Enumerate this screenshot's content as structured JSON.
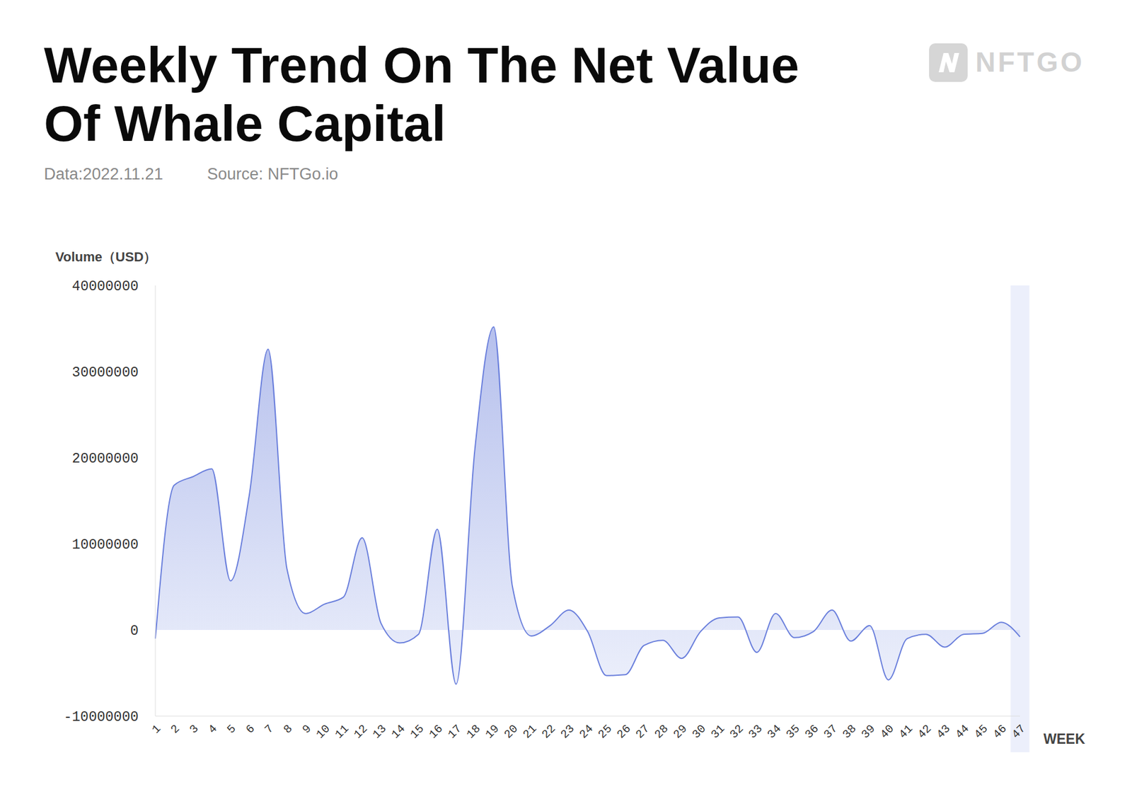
{
  "chart_data": {
    "type": "area",
    "title": "Weekly Trend On The Net Value Of Whale Capital",
    "subtitle": "Data:2022.11.21",
    "source": "Source: NFTGo.io",
    "logo": "NFTGO",
    "y_label": "Volume（USD）",
    "x_label": "WEEK",
    "categories": [
      "1",
      "2",
      "3",
      "4",
      "5",
      "6",
      "7",
      "8",
      "9",
      "10",
      "11",
      "12",
      "13",
      "14",
      "15",
      "16",
      "17",
      "18",
      "19",
      "20",
      "21",
      "22",
      "23",
      "24",
      "25",
      "26",
      "27",
      "28",
      "29",
      "30",
      "31",
      "32",
      "33",
      "34",
      "35",
      "36",
      "37",
      "38",
      "39",
      "40",
      "41",
      "42",
      "43",
      "44",
      "45",
      "46",
      "47"
    ],
    "values": [
      -1000000,
      16800000,
      17800000,
      18700000,
      5700000,
      15700000,
      32600000,
      7100000,
      1900000,
      3000000,
      3800000,
      10700000,
      800000,
      -1500000,
      -500000,
      11700000,
      -6300000,
      21000000,
      35200000,
      5000000,
      -700000,
      500000,
      2300000,
      -200000,
      -5300000,
      -5200000,
      -1800000,
      -1200000,
      -3300000,
      -200000,
      1400000,
      1500000,
      -2600000,
      1900000,
      -900000,
      -200000,
      2300000,
      -1300000,
      500000,
      -5800000,
      -1000000,
      -500000,
      -2000000,
      -500000,
      -400000,
      900000,
      -800000
    ],
    "color": "#6a7fdc",
    "ylim": [
      -10000000,
      40000000
    ],
    "yticks": [
      -10000000,
      0,
      10000000,
      20000000,
      30000000,
      40000000
    ],
    "grid": false
  }
}
